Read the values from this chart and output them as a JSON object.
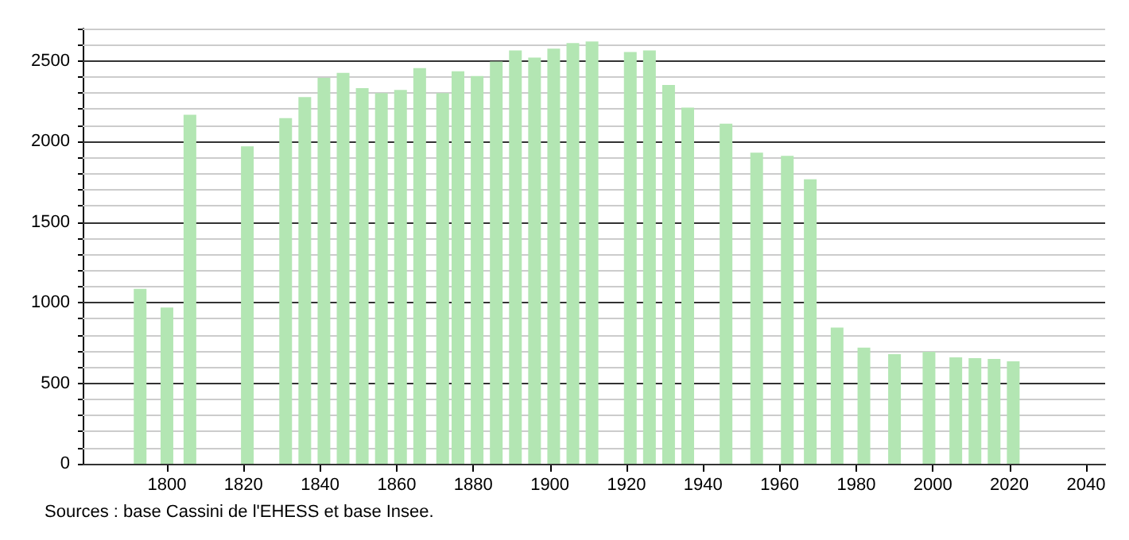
{
  "chart_data": {
    "type": "bar",
    "x": [
      1793,
      1800,
      1806,
      1821,
      1831,
      1836,
      1841,
      1846,
      1851,
      1856,
      1861,
      1866,
      1872,
      1876,
      1881,
      1886,
      1891,
      1896,
      1901,
      1906,
      1911,
      1921,
      1926,
      1931,
      1936,
      1946,
      1954,
      1962,
      1968,
      1975,
      1982,
      1990,
      1999,
      2006,
      2011,
      2016,
      2021
    ],
    "values": [
      1085,
      970,
      2165,
      1970,
      2145,
      2275,
      2395,
      2425,
      2330,
      2300,
      2320,
      2455,
      2300,
      2435,
      2405,
      2495,
      2565,
      2520,
      2575,
      2610,
      2620,
      2555,
      2565,
      2350,
      2210,
      2110,
      1930,
      1910,
      1765,
      845,
      720,
      680,
      695,
      660,
      655,
      650,
      635
    ],
    "color": "#b3e6b3",
    "xlim": [
      1778,
      2045
    ],
    "xticks": [
      1800,
      1820,
      1840,
      1860,
      1880,
      1900,
      1920,
      1940,
      1960,
      1980,
      2000,
      2020,
      2040
    ],
    "ylim": [
      0,
      2700
    ],
    "yticks": [
      0,
      {
        "value": 100,
        "label": null
      },
      {
        "value": 200,
        "label": null
      },
      {
        "value": 300,
        "label": null
      },
      {
        "value": 400,
        "label": null
      },
      500,
      {
        "value": 600,
        "label": null
      },
      {
        "value": 700,
        "label": null
      },
      {
        "value": 800,
        "label": null
      },
      {
        "value": 900,
        "label": null
      },
      1000,
      {
        "value": 1100,
        "label": null
      },
      {
        "value": 1200,
        "label": null
      },
      {
        "value": 1300,
        "label": null
      },
      {
        "value": 1400,
        "label": null
      },
      1500,
      {
        "value": 1600,
        "label": null
      },
      {
        "value": 1700,
        "label": null
      },
      {
        "value": 1800,
        "label": null
      },
      {
        "value": 1900,
        "label": null
      },
      2000,
      {
        "value": 2100,
        "label": null
      },
      {
        "value": 2200,
        "label": null
      },
      {
        "value": 2300,
        "label": null
      },
      {
        "value": 2400,
        "label": null
      },
      2500,
      {
        "value": 2600,
        "label": null
      },
      {
        "value": 2700,
        "label": null
      }
    ],
    "grid": "y",
    "annotations": [
      "Sources : base Cassini de l'EHESS et base Insee."
    ]
  }
}
